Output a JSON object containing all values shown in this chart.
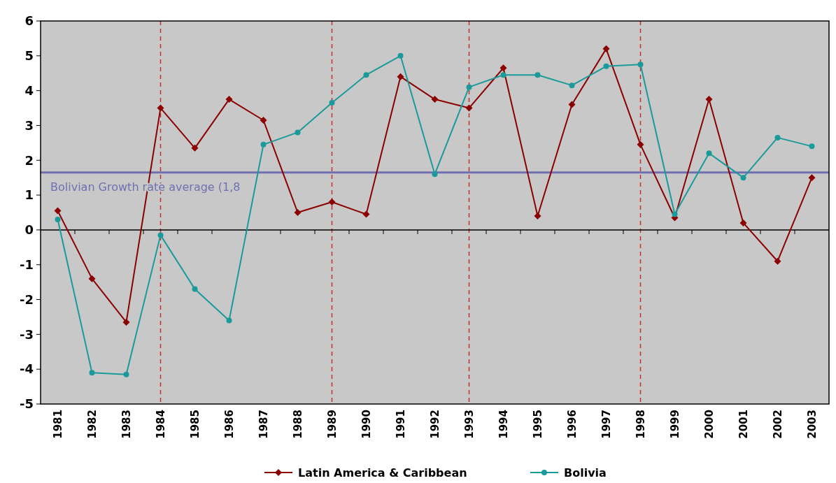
{
  "chart_data": {
    "type": "line",
    "categories": [
      "1981",
      "1982",
      "1983",
      "1984",
      "1985",
      "1986",
      "1987",
      "1988",
      "1989",
      "1990",
      "1991",
      "1992",
      "1993",
      "1994",
      "1995",
      "1996",
      "1997",
      "1998",
      "1999",
      "2000",
      "2001",
      "2002",
      "2003"
    ],
    "series": [
      {
        "name": "Latin America & Caribbean",
        "color": "#8b0000",
        "marker": "diamond",
        "values": [
          0.55,
          -1.4,
          -2.65,
          3.5,
          2.35,
          3.75,
          3.15,
          0.5,
          0.8,
          0.45,
          4.4,
          3.75,
          3.5,
          4.65,
          0.4,
          3.6,
          5.2,
          2.45,
          0.35,
          3.75,
          0.2,
          -0.9,
          1.5
        ]
      },
      {
        "name": "Bolivia",
        "color": "#1a9a9a",
        "marker": "circle",
        "values": [
          0.3,
          -4.1,
          -4.15,
          -0.15,
          -1.7,
          -2.6,
          2.45,
          2.8,
          3.65,
          4.45,
          5.0,
          1.6,
          4.1,
          4.45,
          4.45,
          4.15,
          4.7,
          4.75,
          0.45,
          2.2,
          1.5,
          2.65,
          2.4
        ]
      }
    ],
    "ylim": [
      -5,
      6
    ],
    "yticks": [
      -5,
      -4,
      -3,
      -2,
      -1,
      0,
      1,
      2,
      3,
      4,
      5,
      6
    ],
    "ref_lines": [
      {
        "axis": "y",
        "value": 1.65,
        "label": "Bolivian Growth rate average (1,8",
        "color": "#7070b0",
        "line_style": "solid"
      },
      {
        "axis": "x",
        "value": "1984",
        "color": "#c03030",
        "line_style": "dashed"
      },
      {
        "axis": "x",
        "value": "1989",
        "color": "#c03030",
        "line_style": "dashed"
      },
      {
        "axis": "x",
        "value": "1993",
        "color": "#c03030",
        "line_style": "dashed"
      },
      {
        "axis": "x",
        "value": "1998",
        "color": "#c03030",
        "line_style": "dashed"
      }
    ],
    "grid": false,
    "legend": "bottom",
    "line_style": "solid"
  }
}
